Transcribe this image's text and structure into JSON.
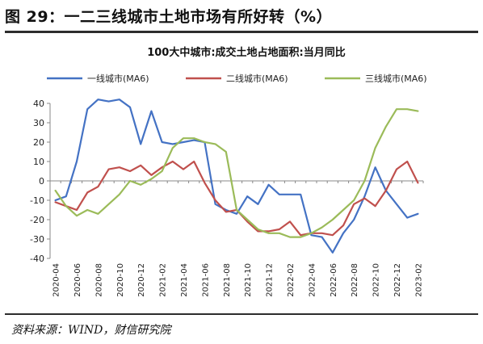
{
  "figure": {
    "title": "图 29：一二三线城市土地市场有所好转（%）",
    "source": "资料来源：WIND，财信研究院"
  },
  "chart_data": {
    "type": "line",
    "title": "100大中城市:成交土地占地面积:当月同比",
    "x": [
      "2020-04",
      "2020-05",
      "2020-06",
      "2020-07",
      "2020-08",
      "2020-09",
      "2020-10",
      "2020-11",
      "2020-12",
      "2021-01",
      "2021-02",
      "2021-03",
      "2021-04",
      "2021-05",
      "2021-06",
      "2021-07",
      "2021-08",
      "2021-09",
      "2021-10",
      "2021-11",
      "2021-12",
      "2022-01",
      "2022-02",
      "2022-03",
      "2022-04",
      "2022-05",
      "2022-06",
      "2022-07",
      "2022-08",
      "2022-09",
      "2022-10",
      "2022-11",
      "2022-12",
      "2023-01",
      "2023-02"
    ],
    "x_tick_labels": [
      "2020-04",
      "2020-06",
      "2020-08",
      "2020-10",
      "2020-12",
      "2021-02",
      "2021-04",
      "2021-06",
      "2021-08",
      "2021-10",
      "2021-12",
      "2022-02",
      "2022-04",
      "2022-06",
      "2022-08",
      "2022-10",
      "2022-12",
      "2023-02"
    ],
    "ylim": [
      -40,
      40
    ],
    "yticks": [
      -40,
      -30,
      -20,
      -10,
      0,
      10,
      20,
      30,
      40
    ],
    "grid": false,
    "legend_position": "top",
    "series": [
      {
        "name": "一线城市(MA6)",
        "color": "#4472c4",
        "values": [
          -10,
          -8,
          10,
          37,
          42,
          41,
          42,
          38,
          19,
          36,
          20,
          19,
          20,
          21,
          20,
          -12,
          -15,
          -17,
          -8,
          -12,
          -2,
          -7,
          -7,
          -7,
          -28,
          -29,
          -37,
          -27,
          -20,
          -8,
          7,
          -5,
          -12,
          -19,
          -17
        ]
      },
      {
        "name": "二线城市(MA6)",
        "color": "#c0504d",
        "values": [
          -11,
          -13,
          -15,
          -6,
          -3,
          6,
          7,
          5,
          8,
          3,
          7,
          10,
          6,
          10,
          -1,
          -10,
          -16,
          -15,
          -21,
          -26,
          -26,
          -25,
          -21,
          -28,
          -27,
          -27,
          -28,
          -23,
          -12,
          -9,
          -13,
          -5,
          6,
          10,
          -1
        ]
      },
      {
        "name": "三线城市(MA6)",
        "color": "#9bbb59",
        "values": [
          -5,
          -13,
          -18,
          -15,
          -17,
          -12,
          -7,
          0,
          -2,
          1,
          5,
          17,
          22,
          22,
          20,
          19,
          15,
          -15,
          -20,
          -25,
          -27,
          -27,
          -29,
          -29,
          -27,
          -24,
          -20,
          -15,
          -10,
          0,
          17,
          28,
          37,
          37,
          36
        ]
      }
    ]
  }
}
